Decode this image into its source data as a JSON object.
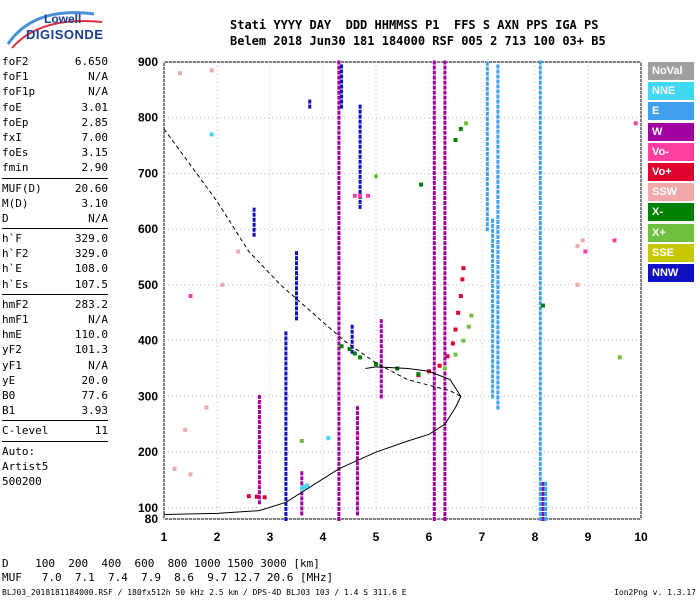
{
  "logo": {
    "line1": "Lowell",
    "line2": "DIGISONDE"
  },
  "header": {
    "row1": "Stati YYYY DAY  DDD HHMMSS P1  FFS S AXN PPS IGA PS",
    "row2": "Belem 2018 Jun30 181 184000 RSF 005 2 713 100 03+ B5"
  },
  "params": [
    {
      "k": "foF2",
      "v": "6.650"
    },
    {
      "k": "foF1",
      "v": "N/A"
    },
    {
      "k": "foF1p",
      "v": "N/A"
    },
    {
      "k": "foE",
      "v": "3.01"
    },
    {
      "k": "foEp",
      "v": "2.85"
    },
    {
      "k": "fxI",
      "v": "7.00"
    },
    {
      "k": "foEs",
      "v": "3.15"
    },
    {
      "k": "fmin",
      "v": "2.90"
    },
    {
      "k": "MUF(D)",
      "v": "20.60"
    },
    {
      "k": "M(D)",
      "v": "3.10"
    },
    {
      "k": "D",
      "v": "N/A"
    },
    {
      "k": "h`F",
      "v": "329.0"
    },
    {
      "k": "h`F2",
      "v": "329.0"
    },
    {
      "k": "h`E",
      "v": "108.0"
    },
    {
      "k": "h`Es",
      "v": "107.5"
    },
    {
      "k": "hmF2",
      "v": "283.2"
    },
    {
      "k": "hmF1",
      "v": "N/A"
    },
    {
      "k": "hmE",
      "v": "110.0"
    },
    {
      "k": "yF2",
      "v": "101.3"
    },
    {
      "k": "yF1",
      "v": "N/A"
    },
    {
      "k": "yE",
      "v": "20.0"
    },
    {
      "k": "B0",
      "v": "77.6"
    },
    {
      "k": "B1",
      "v": "3.93"
    },
    {
      "k": "C-level",
      "v": "11"
    }
  ],
  "auto": {
    "l1": "Auto:",
    "l2": "Artist5",
    "l3": "500200"
  },
  "legend": [
    {
      "label": "NoVal",
      "color": "#a0a0a0"
    },
    {
      "label": "NNE",
      "color": "#40d8f0"
    },
    {
      "label": "E",
      "color": "#40a0f0"
    },
    {
      "label": "W",
      "color": "#a000a0"
    },
    {
      "label": "Vo-",
      "color": "#ff40a0"
    },
    {
      "label": "Vo+",
      "color": "#e00030"
    },
    {
      "label": "SSW",
      "color": "#f0a8a8"
    },
    {
      "label": "X-",
      "color": "#008000"
    },
    {
      "label": "X+",
      "color": "#70c040"
    },
    {
      "label": "SSE",
      "color": "#c8c800"
    },
    {
      "label": "NNW",
      "color": "#1010c0"
    }
  ],
  "bottom": {
    "row1": "D    100  200  400  600  800 1000 1500 3000 [km]",
    "row2": "MUF   7.0  7.1  7.4  7.9  8.6  9.7 12.7 20.6 [MHz]"
  },
  "footer": {
    "left": "BLJ03_2018181184000.RSF / 180fx512h 50 kHz 2.5 km / DPS-4D BLJ03 103 / 1.4 S 311.6 E",
    "right": "Ion2Png v. 1.3.17"
  },
  "chart_data": {
    "type": "scatter",
    "xlim": [
      1,
      10
    ],
    "ylim": [
      80,
      900
    ],
    "xticks": [
      1,
      2,
      3,
      4,
      5,
      6,
      7,
      8,
      9,
      10
    ],
    "yticks": [
      80,
      100,
      200,
      300,
      400,
      500,
      600,
      700,
      800,
      900
    ],
    "grid": true,
    "series": [
      {
        "name": "Vo+",
        "color": "#e00030",
        "type": "scatter",
        "points": [
          [
            2.6,
            121
          ],
          [
            2.75,
            120
          ],
          [
            2.9,
            119
          ],
          [
            5.8,
            338
          ],
          [
            6.0,
            345
          ],
          [
            6.2,
            355
          ],
          [
            6.35,
            372
          ],
          [
            6.45,
            395
          ],
          [
            6.5,
            420
          ],
          [
            6.55,
            450
          ],
          [
            6.6,
            480
          ],
          [
            6.63,
            510
          ],
          [
            6.65,
            530
          ]
        ]
      },
      {
        "name": "W",
        "color": "#a000a0",
        "type": "vlines",
        "lines": [
          [
            6.1,
            80,
            900
          ],
          [
            6.3,
            80,
            900
          ],
          [
            4.3,
            80,
            900
          ],
          [
            2.8,
            110,
            300
          ],
          [
            3.6,
            90,
            170
          ],
          [
            4.65,
            90,
            280
          ],
          [
            5.1,
            300,
            440
          ],
          [
            8.15,
            80,
            150
          ]
        ]
      },
      {
        "name": "NNW",
        "color": "#1010c0",
        "type": "vlines",
        "lines": [
          [
            3.3,
            80,
            420
          ],
          [
            3.5,
            440,
            560
          ],
          [
            4.7,
            640,
            820
          ],
          [
            3.75,
            820,
            830
          ],
          [
            4.35,
            820,
            900
          ],
          [
            4.55,
            380,
            430
          ],
          [
            2.7,
            590,
            640
          ]
        ]
      },
      {
        "name": "E",
        "color": "#40a0f0",
        "type": "vlines",
        "lines": [
          [
            7.2,
            300,
            620
          ],
          [
            7.3,
            280,
            900
          ],
          [
            8.1,
            80,
            900
          ],
          [
            8.2,
            80,
            150
          ],
          [
            7.1,
            600,
            900
          ]
        ]
      },
      {
        "name": "X-",
        "color": "#008000",
        "type": "scatter",
        "points": [
          [
            4.35,
            390
          ],
          [
            4.5,
            385
          ],
          [
            4.6,
            377
          ],
          [
            4.7,
            370
          ],
          [
            5.0,
            358
          ],
          [
            5.4,
            350
          ],
          [
            5.8,
            340
          ],
          [
            6.5,
            760
          ],
          [
            6.6,
            780
          ],
          [
            8.15,
            463
          ],
          [
            5.85,
            680
          ]
        ]
      },
      {
        "name": "X+",
        "color": "#70c040",
        "type": "scatter",
        "points": [
          [
            6.3,
            350
          ],
          [
            6.5,
            375
          ],
          [
            6.65,
            400
          ],
          [
            6.75,
            425
          ],
          [
            6.8,
            445
          ],
          [
            6.7,
            790
          ],
          [
            5.0,
            695
          ],
          [
            3.6,
            220
          ],
          [
            9.6,
            370
          ]
        ]
      },
      {
        "name": "Vo-",
        "color": "#ff40a0",
        "type": "scatter",
        "points": [
          [
            4.6,
            660
          ],
          [
            4.7,
            660
          ],
          [
            4.85,
            660
          ],
          [
            1.5,
            480
          ],
          [
            9.5,
            580
          ],
          [
            8.95,
            560
          ],
          [
            9.9,
            790
          ]
        ]
      },
      {
        "name": "SSW",
        "color": "#f0a8a8",
        "type": "scatter",
        "points": [
          [
            1.3,
            880
          ],
          [
            1.9,
            885
          ],
          [
            1.8,
            280
          ],
          [
            1.4,
            240
          ],
          [
            2.1,
            500
          ],
          [
            2.4,
            560
          ],
          [
            8.8,
            500
          ],
          [
            8.8,
            570
          ],
          [
            8.9,
            580
          ],
          [
            1.2,
            170
          ],
          [
            1.5,
            160
          ]
        ]
      },
      {
        "name": "NNE",
        "color": "#40d8f0",
        "type": "scatter",
        "points": [
          [
            3.6,
            135
          ],
          [
            3.65,
            137
          ],
          [
            3.7,
            140
          ],
          [
            4.1,
            225
          ],
          [
            1.9,
            770
          ]
        ]
      }
    ],
    "curves": [
      {
        "name": "profile",
        "style": "solid",
        "points": [
          [
            1,
            88
          ],
          [
            2,
            90
          ],
          [
            2.8,
            95
          ],
          [
            3.3,
            110
          ],
          [
            3.8,
            140
          ],
          [
            4.3,
            170
          ],
          [
            5.0,
            200
          ],
          [
            5.6,
            220
          ],
          [
            6.0,
            232
          ],
          [
            6.3,
            250
          ],
          [
            6.5,
            280
          ],
          [
            6.6,
            300
          ],
          [
            6.4,
            330
          ],
          [
            6.0,
            345
          ],
          [
            5.6,
            350
          ],
          [
            5.2,
            352
          ],
          [
            5.0,
            353
          ],
          [
            4.8,
            350
          ]
        ]
      },
      {
        "name": "trace",
        "style": "dashed",
        "points": [
          [
            1,
            780
          ],
          [
            2,
            650
          ],
          [
            2.6,
            560
          ],
          [
            3.2,
            500
          ],
          [
            3.8,
            450
          ],
          [
            4.4,
            400
          ],
          [
            5.0,
            360
          ],
          [
            5.6,
            330
          ],
          [
            6.0,
            320
          ],
          [
            6.4,
            310
          ],
          [
            6.6,
            300
          ]
        ]
      }
    ]
  }
}
